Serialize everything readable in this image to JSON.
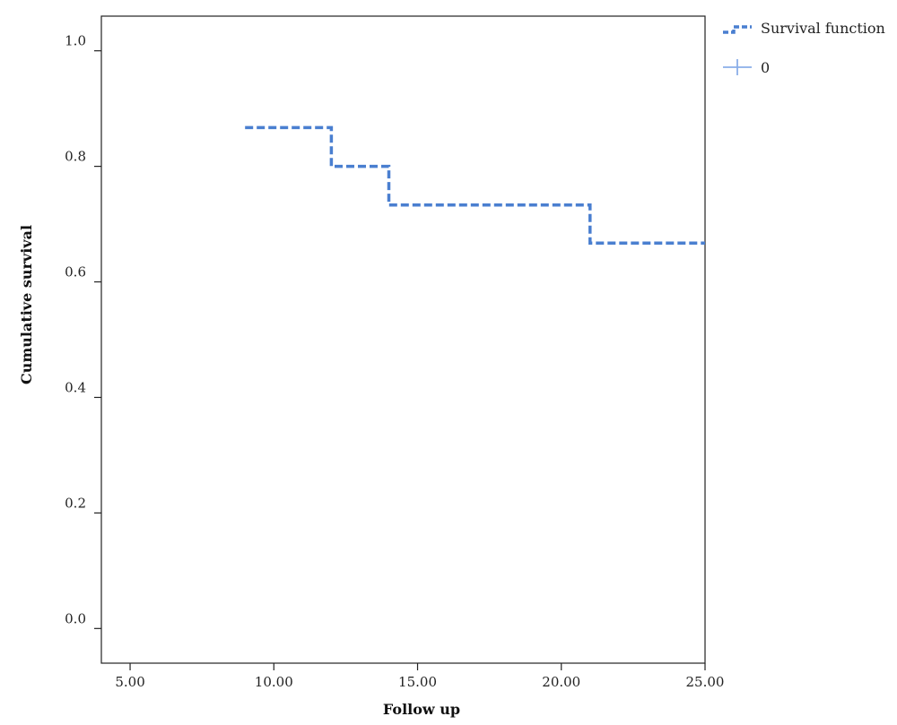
{
  "chart_data": {
    "type": "line",
    "xlabel": "Follow up",
    "ylabel": "Cumulative survival",
    "xlim": [
      4.0,
      25.0
    ],
    "ylim": [
      -0.06,
      1.06
    ],
    "x_ticks": [
      5,
      10,
      15,
      20,
      25
    ],
    "x_tick_labels": [
      "5.00",
      "10.00",
      "15.00",
      "20.00",
      "25.00"
    ],
    "y_ticks": [
      0.0,
      0.2,
      0.4,
      0.6,
      0.8,
      1.0
    ],
    "y_tick_labels": [
      "0.0",
      "0.2",
      "0.4",
      "0.6",
      "0.8",
      "1.0"
    ],
    "grid": false,
    "legend_position": "top-right outside",
    "series": [
      {
        "name": "Survival function",
        "style": "dashed-step",
        "color": "#4a7fd0",
        "x": [
          9,
          12,
          12,
          14,
          14,
          21,
          21,
          25
        ],
        "y": [
          0.867,
          0.867,
          0.8,
          0.8,
          0.733,
          0.733,
          0.667,
          0.667
        ]
      },
      {
        "name": "0",
        "style": "censored-marker",
        "color": "#4a7fd0",
        "x": [],
        "y": []
      }
    ]
  }
}
